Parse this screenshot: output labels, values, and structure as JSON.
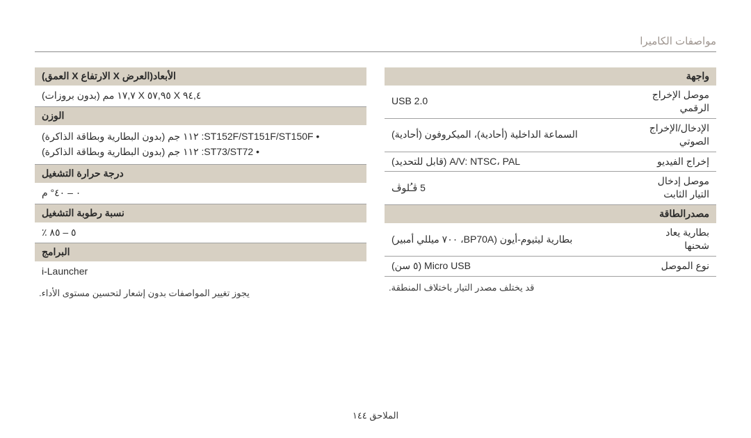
{
  "page_title": "مواصفات الكاميرا",
  "footer": "الملاحق  ١٤٤",
  "left_col": {
    "interface_head": "واجهة",
    "rows": [
      {
        "k": "موصل الإخراج الرقمي",
        "v": "USB 2.0"
      },
      {
        "k": "الإدخال/الإخراج الصوتي",
        "v": "السماعة الداخلية (أحادية)، الميكروفون (أحادية)"
      },
      {
        "k": "إخراج الفيديو",
        "v": "A/V: NTSC، PAL (قابل للتحديد)"
      },
      {
        "k": "موصل إدخال التيار الثابت",
        "v": "5 ڤـُلوڤ"
      }
    ],
    "power_head": "مصدرالطاقة",
    "power_rows": [
      {
        "k": "بطارية يعاد شحنها",
        "v": "بطارية ليثيوم-أيون (BP70A، ٧٠٠ ميللي أمبير)"
      },
      {
        "k": "نوع الموصل",
        "v": "Micro USB (٥ سن)"
      }
    ],
    "power_note": "قد يختلف مصدر التيار باختلاف المنطقة."
  },
  "right_col": {
    "dim_head": "الأبعاد(العرض X الارتفاع X العمق)",
    "dim_val": "٩٤,٤ X ٥٧,٩٥ X ١٧,٧ مم (بدون بروزات)",
    "weight_head": "الوزن",
    "weight_items": [
      "• ST152F/ST151F/ST150F: ١١٢ جم (بدون البطارية وبطاقة الذاكرة)",
      "• ST73/ST72: ١١٢ جم (بدون البطارية وبطاقة الذاكرة)"
    ],
    "temp_head": "درجة حرارة التشغيل",
    "temp_val": "٠ – ٤٠° م",
    "humid_head": "نسبة رطوبة التشغيل",
    "humid_val": "٥ – ٨٥ ٪",
    "soft_head": "البرامج",
    "soft_val": "i-Launcher",
    "soft_note": "يجوز تغيير المواصفات بدون إشعار لتحسين مستوى الأداء."
  }
}
